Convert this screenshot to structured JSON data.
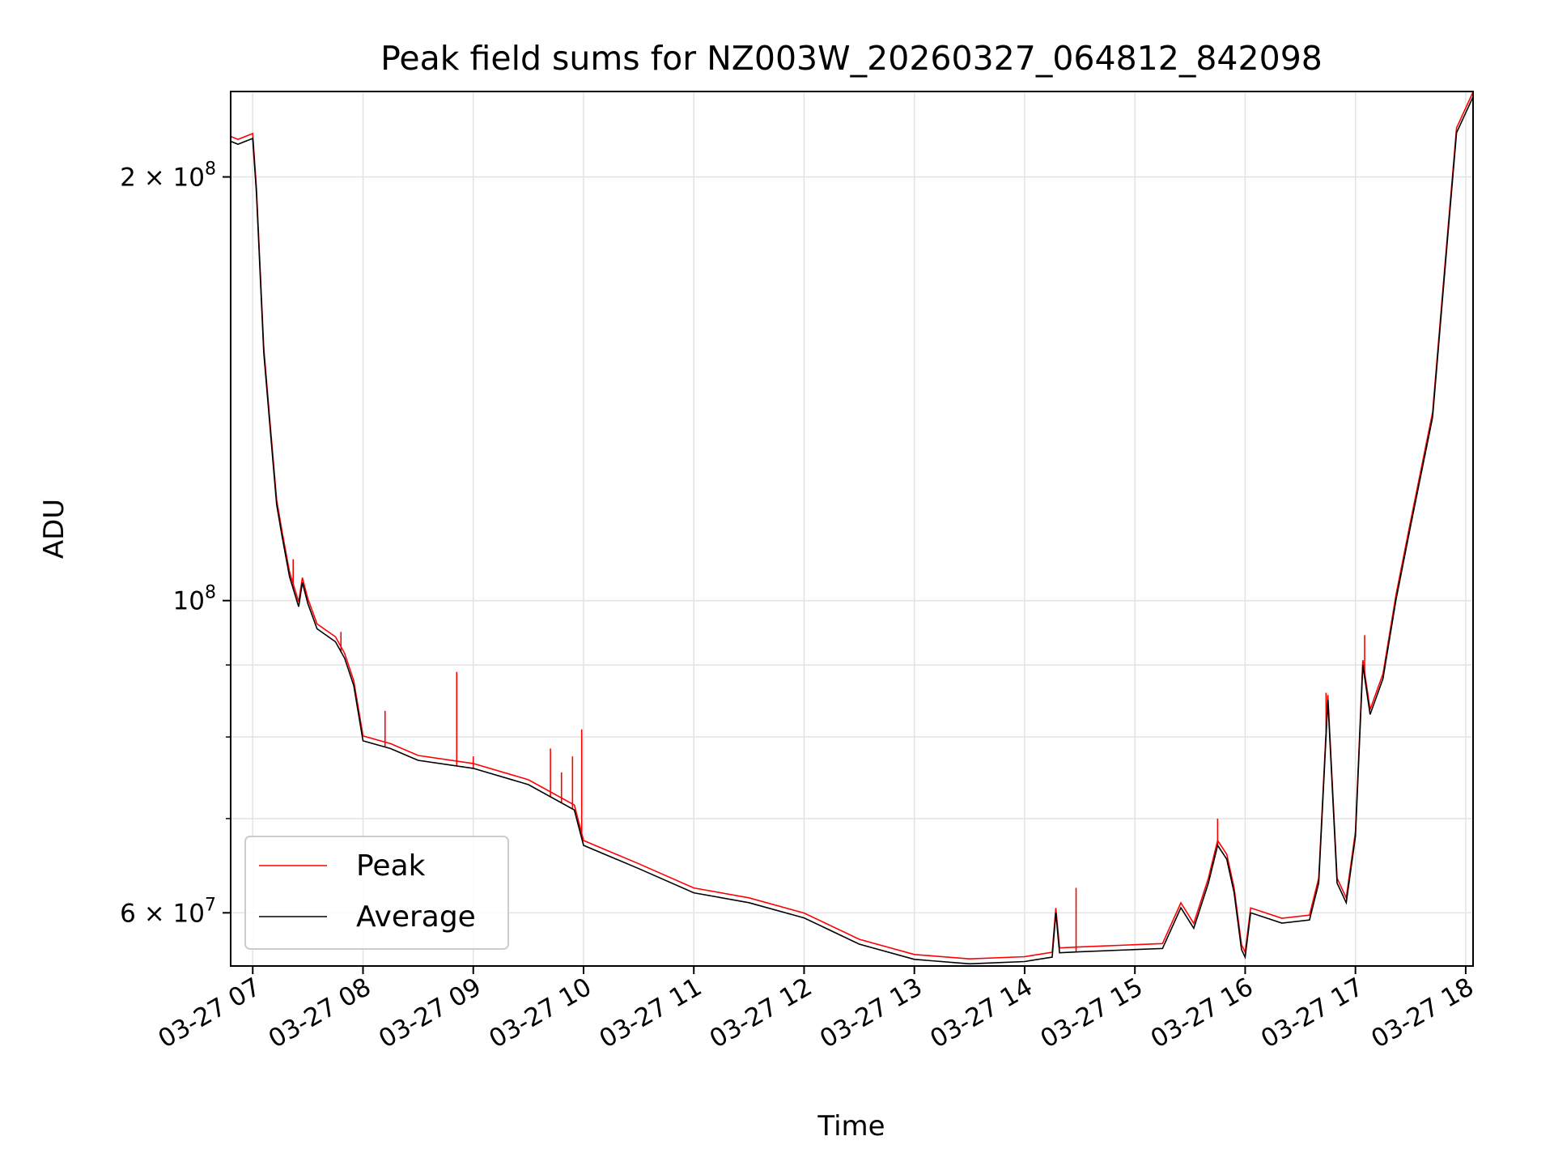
{
  "chart_data": {
    "type": "line",
    "title": "Peak field sums for NZ003W_20260327_064812_842098",
    "xlabel": "Time",
    "ylabel": "ADU",
    "y_scale": "log",
    "ylim": [
      55000000,
      230000000
    ],
    "xlim": [
      "2026-03-27 06:48",
      "2026-03-27 18:04"
    ],
    "grid": true,
    "legend_location": "lower left",
    "x_ticks": [
      {
        "t": "2026-03-27 07:00",
        "label": "03-27 07"
      },
      {
        "t": "2026-03-27 08:00",
        "label": "03-27 08"
      },
      {
        "t": "2026-03-27 09:00",
        "label": "03-27 09"
      },
      {
        "t": "2026-03-27 10:00",
        "label": "03-27 10"
      },
      {
        "t": "2026-03-27 11:00",
        "label": "03-27 11"
      },
      {
        "t": "2026-03-27 12:00",
        "label": "03-27 12"
      },
      {
        "t": "2026-03-27 13:00",
        "label": "03-27 13"
      },
      {
        "t": "2026-03-27 14:00",
        "label": "03-27 14"
      },
      {
        "t": "2026-03-27 15:00",
        "label": "03-27 15"
      },
      {
        "t": "2026-03-27 16:00",
        "label": "03-27 16"
      },
      {
        "t": "2026-03-27 17:00",
        "label": "03-27 17"
      },
      {
        "t": "2026-03-27 18:00",
        "label": "03-27 18"
      }
    ],
    "y_major_ticks": [
      {
        "value": 60000000,
        "base": "6 × 10",
        "exp": "7"
      },
      {
        "value": 100000000,
        "base": "10",
        "exp": "8"
      },
      {
        "value": 200000000,
        "base": "2 × 10",
        "exp": "8"
      }
    ],
    "y_minor_ticks": [
      70000000,
      80000000,
      90000000
    ],
    "series": [
      {
        "name": "Average",
        "color": "#000000",
        "points": [
          [
            "2026-03-27 06:48",
            212000000
          ],
          [
            "2026-03-27 06:52",
            211000000
          ],
          [
            "2026-03-27 06:56",
            212000000
          ],
          [
            "2026-03-27 07:00",
            213000000
          ],
          [
            "2026-03-27 07:02",
            195000000
          ],
          [
            "2026-03-27 07:06",
            150000000
          ],
          [
            "2026-03-27 07:10",
            130000000
          ],
          [
            "2026-03-27 07:13",
            117000000
          ],
          [
            "2026-03-27 07:16",
            111000000
          ],
          [
            "2026-03-27 07:20",
            104000000
          ],
          [
            "2026-03-27 07:25",
            99000000
          ],
          [
            "2026-03-27 07:27",
            103000000
          ],
          [
            "2026-03-27 07:30",
            99500000
          ],
          [
            "2026-03-27 07:35",
            95500000
          ],
          [
            "2026-03-27 07:45",
            93500000
          ],
          [
            "2026-03-27 07:50",
            91000000
          ],
          [
            "2026-03-27 07:55",
            87000000
          ],
          [
            "2026-03-27 08:00",
            79500000
          ],
          [
            "2026-03-27 08:15",
            78500000
          ],
          [
            "2026-03-27 08:30",
            77000000
          ],
          [
            "2026-03-27 09:00",
            76000000
          ],
          [
            "2026-03-27 09:30",
            74000000
          ],
          [
            "2026-03-27 09:55",
            71000000
          ],
          [
            "2026-03-27 10:00",
            67000000
          ],
          [
            "2026-03-27 10:30",
            64500000
          ],
          [
            "2026-03-27 11:00",
            62000000
          ],
          [
            "2026-03-27 11:30",
            61000000
          ],
          [
            "2026-03-27 12:00",
            59500000
          ],
          [
            "2026-03-27 12:30",
            57000000
          ],
          [
            "2026-03-27 13:00",
            55600000
          ],
          [
            "2026-03-27 13:30",
            55200000
          ],
          [
            "2026-03-27 14:00",
            55400000
          ],
          [
            "2026-03-27 14:15",
            55800000
          ],
          [
            "2026-03-27 14:17",
            60000000
          ],
          [
            "2026-03-27 14:19",
            56200000
          ],
          [
            "2026-03-27 14:30",
            56300000
          ],
          [
            "2026-03-27 15:00",
            56500000
          ],
          [
            "2026-03-27 15:15",
            56600000
          ],
          [
            "2026-03-27 15:25",
            60500000
          ],
          [
            "2026-03-27 15:32",
            58500000
          ],
          [
            "2026-03-27 15:40",
            63000000
          ],
          [
            "2026-03-27 15:45",
            67000000
          ],
          [
            "2026-03-27 15:50",
            65500000
          ],
          [
            "2026-03-27 15:54",
            62000000
          ],
          [
            "2026-03-27 15:58",
            56500000
          ],
          [
            "2026-03-27 16:00",
            55800000
          ],
          [
            "2026-03-27 16:03",
            60000000
          ],
          [
            "2026-03-27 16:20",
            59000000
          ],
          [
            "2026-03-27 16:35",
            59300000
          ],
          [
            "2026-03-27 16:40",
            63000000
          ],
          [
            "2026-03-27 16:45",
            85000000
          ],
          [
            "2026-03-27 16:50",
            63000000
          ],
          [
            "2026-03-27 16:55",
            61000000
          ],
          [
            "2026-03-27 17:00",
            68000000
          ],
          [
            "2026-03-27 17:04",
            90000000
          ],
          [
            "2026-03-27 17:08",
            83000000
          ],
          [
            "2026-03-27 17:15",
            88000000
          ],
          [
            "2026-03-27 17:22",
            100000000
          ],
          [
            "2026-03-27 17:30",
            113000000
          ],
          [
            "2026-03-27 17:42",
            135000000
          ],
          [
            "2026-03-27 17:50",
            180000000
          ],
          [
            "2026-03-27 17:55",
            215000000
          ],
          [
            "2026-03-27 18:04",
            228000000
          ]
        ]
      },
      {
        "name": "Peak",
        "color": "#ff0000",
        "spikes": [
          [
            "2026-03-27 07:22",
            107000000
          ],
          [
            "2026-03-27 07:48",
            95000000
          ],
          [
            "2026-03-27 08:12",
            83500000
          ],
          [
            "2026-03-27 08:51",
            89000000
          ],
          [
            "2026-03-27 09:00",
            77500000
          ],
          [
            "2026-03-27 09:42",
            78500000
          ],
          [
            "2026-03-27 09:48",
            75500000
          ],
          [
            "2026-03-27 09:54",
            77500000
          ],
          [
            "2026-03-27 09:59",
            81000000
          ],
          [
            "2026-03-27 14:28",
            62500000
          ],
          [
            "2026-03-27 15:45",
            70000000
          ],
          [
            "2026-03-27 16:44",
            86000000
          ],
          [
            "2026-03-27 17:05",
            94500000
          ]
        ]
      }
    ]
  }
}
